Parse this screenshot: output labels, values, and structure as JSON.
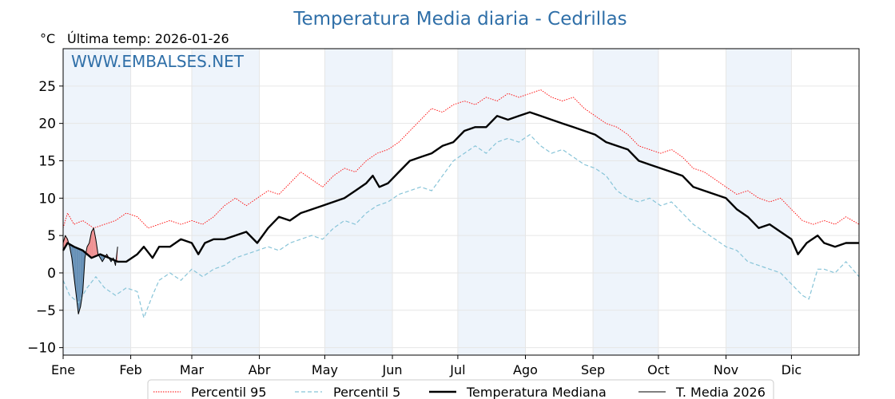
{
  "chart_data": {
    "type": "line",
    "title": "Temperatura Media diaria - Cedrillas",
    "unit_label": "°C",
    "last_temp_label": "Última temp: 2026-01-26",
    "watermark": "WWW.EMBALSES.NET",
    "ylim": [
      -11,
      30
    ],
    "yticks": [
      -10,
      -5,
      0,
      5,
      10,
      15,
      20,
      25
    ],
    "xlim": [
      1,
      366
    ],
    "x_unit": "day of year",
    "months": [
      {
        "label": "Ene",
        "start_day": 1
      },
      {
        "label": "Feb",
        "start_day": 32
      },
      {
        "label": "Mar",
        "start_day": 60
      },
      {
        "label": "Abr",
        "start_day": 91
      },
      {
        "label": "May",
        "start_day": 121
      },
      {
        "label": "Jun",
        "start_day": 152
      },
      {
        "label": "Jul",
        "start_day": 182
      },
      {
        "label": "Ago",
        "start_day": 213
      },
      {
        "label": "Sep",
        "start_day": 244
      },
      {
        "label": "Oct",
        "start_day": 274
      },
      {
        "label": "Nov",
        "start_day": 305
      },
      {
        "label": "Dic",
        "start_day": 335
      }
    ],
    "shaded_months": [
      "Ene",
      "Mar",
      "May",
      "Jul",
      "Sep",
      "Nov"
    ],
    "grid": true,
    "legend": {
      "placement": "bottom-center",
      "entries": [
        "Percentil 95",
        "Percentil 5",
        "Temperatura Mediana",
        "T. Media 2026"
      ]
    },
    "colors": {
      "p95": "#ff0000",
      "p5": "#87c4d8",
      "median": "#000000",
      "current": "#000000",
      "above_fill": "#f08080",
      "below_fill": "#4f7faa",
      "title": "#2f6fa8",
      "shade": "#eef4fb"
    },
    "series": [
      {
        "name": "Percentil 95",
        "style": "dotted-red",
        "points": [
          [
            1,
            6.0
          ],
          [
            3,
            8.0
          ],
          [
            6,
            6.5
          ],
          [
            10,
            7.0
          ],
          [
            15,
            6.0
          ],
          [
            20,
            6.5
          ],
          [
            25,
            7.0
          ],
          [
            30,
            8.0
          ],
          [
            35,
            7.5
          ],
          [
            40,
            6.0
          ],
          [
            45,
            6.5
          ],
          [
            50,
            7.0
          ],
          [
            55,
            6.5
          ],
          [
            60,
            7.0
          ],
          [
            65,
            6.5
          ],
          [
            70,
            7.5
          ],
          [
            75,
            9.0
          ],
          [
            80,
            10.0
          ],
          [
            85,
            9.0
          ],
          [
            90,
            10.0
          ],
          [
            95,
            11.0
          ],
          [
            100,
            10.5
          ],
          [
            105,
            12.0
          ],
          [
            110,
            13.5
          ],
          [
            115,
            12.5
          ],
          [
            120,
            11.5
          ],
          [
            125,
            13.0
          ],
          [
            130,
            14.0
          ],
          [
            135,
            13.5
          ],
          [
            140,
            15.0
          ],
          [
            145,
            16.0
          ],
          [
            150,
            16.5
          ],
          [
            155,
            17.5
          ],
          [
            160,
            19.0
          ],
          [
            165,
            20.5
          ],
          [
            170,
            22.0
          ],
          [
            175,
            21.5
          ],
          [
            180,
            22.5
          ],
          [
            185,
            23.0
          ],
          [
            190,
            22.5
          ],
          [
            195,
            23.5
          ],
          [
            200,
            23.0
          ],
          [
            205,
            24.0
          ],
          [
            210,
            23.5
          ],
          [
            215,
            24.0
          ],
          [
            220,
            24.5
          ],
          [
            225,
            23.5
          ],
          [
            230,
            23.0
          ],
          [
            235,
            23.5
          ],
          [
            240,
            22.0
          ],
          [
            245,
            21.0
          ],
          [
            250,
            20.0
          ],
          [
            255,
            19.5
          ],
          [
            260,
            18.5
          ],
          [
            265,
            17.0
          ],
          [
            270,
            16.5
          ],
          [
            275,
            16.0
          ],
          [
            280,
            16.5
          ],
          [
            285,
            15.5
          ],
          [
            290,
            14.0
          ],
          [
            295,
            13.5
          ],
          [
            300,
            12.5
          ],
          [
            305,
            11.5
          ],
          [
            310,
            10.5
          ],
          [
            315,
            11.0
          ],
          [
            320,
            10.0
          ],
          [
            325,
            9.5
          ],
          [
            330,
            10.0
          ],
          [
            335,
            8.5
          ],
          [
            340,
            7.0
          ],
          [
            345,
            6.5
          ],
          [
            350,
            7.0
          ],
          [
            355,
            6.5
          ],
          [
            360,
            7.5
          ],
          [
            366,
            6.5
          ]
        ]
      },
      {
        "name": "Percentil 5",
        "style": "dashed-lightblue",
        "points": [
          [
            1,
            -1.0
          ],
          [
            4,
            -3.0
          ],
          [
            8,
            -4.0
          ],
          [
            12,
            -2.0
          ],
          [
            16,
            -0.5
          ],
          [
            20,
            -2.0
          ],
          [
            25,
            -3.0
          ],
          [
            30,
            -2.0
          ],
          [
            35,
            -2.5
          ],
          [
            38,
            -6.0
          ],
          [
            42,
            -3.0
          ],
          [
            45,
            -1.0
          ],
          [
            50,
            0.0
          ],
          [
            55,
            -1.0
          ],
          [
            60,
            0.5
          ],
          [
            65,
            -0.5
          ],
          [
            70,
            0.5
          ],
          [
            75,
            1.0
          ],
          [
            80,
            2.0
          ],
          [
            85,
            2.5
          ],
          [
            90,
            3.0
          ],
          [
            95,
            3.5
          ],
          [
            100,
            3.0
          ],
          [
            105,
            4.0
          ],
          [
            110,
            4.5
          ],
          [
            115,
            5.0
          ],
          [
            120,
            4.5
          ],
          [
            125,
            6.0
          ],
          [
            130,
            7.0
          ],
          [
            135,
            6.5
          ],
          [
            140,
            8.0
          ],
          [
            145,
            9.0
          ],
          [
            150,
            9.5
          ],
          [
            155,
            10.5
          ],
          [
            160,
            11.0
          ],
          [
            165,
            11.5
          ],
          [
            170,
            11.0
          ],
          [
            175,
            13.0
          ],
          [
            180,
            15.0
          ],
          [
            185,
            16.0
          ],
          [
            190,
            17.0
          ],
          [
            195,
            16.0
          ],
          [
            200,
            17.5
          ],
          [
            205,
            18.0
          ],
          [
            210,
            17.5
          ],
          [
            215,
            18.5
          ],
          [
            220,
            17.0
          ],
          [
            225,
            16.0
          ],
          [
            230,
            16.5
          ],
          [
            235,
            15.5
          ],
          [
            240,
            14.5
          ],
          [
            245,
            14.0
          ],
          [
            250,
            13.0
          ],
          [
            255,
            11.0
          ],
          [
            260,
            10.0
          ],
          [
            265,
            9.5
          ],
          [
            270,
            10.0
          ],
          [
            275,
            9.0
          ],
          [
            280,
            9.5
          ],
          [
            285,
            8.0
          ],
          [
            290,
            6.5
          ],
          [
            295,
            5.5
          ],
          [
            300,
            4.5
          ],
          [
            305,
            3.5
          ],
          [
            310,
            3.0
          ],
          [
            315,
            1.5
          ],
          [
            320,
            1.0
          ],
          [
            325,
            0.5
          ],
          [
            330,
            0.0
          ],
          [
            335,
            -1.5
          ],
          [
            340,
            -3.0
          ],
          [
            343,
            -3.5
          ],
          [
            347,
            0.5
          ],
          [
            350,
            0.5
          ],
          [
            355,
            0.0
          ],
          [
            360,
            1.5
          ],
          [
            366,
            -0.5
          ]
        ]
      },
      {
        "name": "Temperatura Mediana",
        "style": "thick-black",
        "points": [
          [
            1,
            3.0
          ],
          [
            3,
            4.0
          ],
          [
            6,
            3.5
          ],
          [
            10,
            3.0
          ],
          [
            14,
            2.0
          ],
          [
            18,
            2.5
          ],
          [
            22,
            2.0
          ],
          [
            26,
            1.5
          ],
          [
            30,
            1.5
          ],
          [
            35,
            2.5
          ],
          [
            38,
            3.5
          ],
          [
            42,
            2.0
          ],
          [
            45,
            3.5
          ],
          [
            50,
            3.5
          ],
          [
            55,
            4.5
          ],
          [
            60,
            4.0
          ],
          [
            63,
            2.5
          ],
          [
            66,
            4.0
          ],
          [
            70,
            4.5
          ],
          [
            75,
            4.5
          ],
          [
            80,
            5.0
          ],
          [
            85,
            5.5
          ],
          [
            90,
            4.0
          ],
          [
            95,
            6.0
          ],
          [
            100,
            7.5
          ],
          [
            105,
            7.0
          ],
          [
            110,
            8.0
          ],
          [
            115,
            8.5
          ],
          [
            120,
            9.0
          ],
          [
            125,
            9.5
          ],
          [
            130,
            10.0
          ],
          [
            135,
            11.0
          ],
          [
            140,
            12.0
          ],
          [
            143,
            13.0
          ],
          [
            146,
            11.5
          ],
          [
            150,
            12.0
          ],
          [
            155,
            13.5
          ],
          [
            160,
            15.0
          ],
          [
            165,
            15.5
          ],
          [
            170,
            16.0
          ],
          [
            175,
            17.0
          ],
          [
            180,
            17.5
          ],
          [
            185,
            19.0
          ],
          [
            190,
            19.5
          ],
          [
            195,
            19.5
          ],
          [
            200,
            21.0
          ],
          [
            205,
            20.5
          ],
          [
            210,
            21.0
          ],
          [
            215,
            21.5
          ],
          [
            220,
            21.0
          ],
          [
            225,
            20.5
          ],
          [
            230,
            20.0
          ],
          [
            235,
            19.5
          ],
          [
            240,
            19.0
          ],
          [
            245,
            18.5
          ],
          [
            250,
            17.5
          ],
          [
            255,
            17.0
          ],
          [
            260,
            16.5
          ],
          [
            265,
            15.0
          ],
          [
            270,
            14.5
          ],
          [
            275,
            14.0
          ],
          [
            280,
            13.5
          ],
          [
            285,
            13.0
          ],
          [
            290,
            11.5
          ],
          [
            295,
            11.0
          ],
          [
            300,
            10.5
          ],
          [
            305,
            10.0
          ],
          [
            310,
            8.5
          ],
          [
            315,
            7.5
          ],
          [
            320,
            6.0
          ],
          [
            325,
            6.5
          ],
          [
            330,
            5.5
          ],
          [
            335,
            4.5
          ],
          [
            338,
            2.5
          ],
          [
            342,
            4.0
          ],
          [
            347,
            5.0
          ],
          [
            350,
            4.0
          ],
          [
            355,
            3.5
          ],
          [
            360,
            4.0
          ],
          [
            366,
            4.0
          ]
        ]
      },
      {
        "name": "T. Media 2026",
        "style": "thin-black",
        "points": [
          [
            1,
            4.0
          ],
          [
            2,
            5.0
          ],
          [
            3,
            4.5
          ],
          [
            4,
            3.5
          ],
          [
            5,
            2.0
          ],
          [
            6,
            -0.5
          ],
          [
            7,
            -3.0
          ],
          [
            8,
            -5.5
          ],
          [
            9,
            -4.5
          ],
          [
            10,
            -2.5
          ],
          [
            11,
            2.0
          ],
          [
            12,
            3.5
          ],
          [
            13,
            4.0
          ],
          [
            14,
            5.5
          ],
          [
            15,
            6.0
          ],
          [
            16,
            4.5
          ],
          [
            17,
            2.5
          ],
          [
            18,
            2.0
          ],
          [
            19,
            1.5
          ],
          [
            20,
            2.0
          ],
          [
            21,
            2.5
          ],
          [
            22,
            2.0
          ],
          [
            23,
            1.5
          ],
          [
            24,
            2.0
          ],
          [
            25,
            1.0
          ],
          [
            26,
            3.5
          ]
        ]
      }
    ]
  }
}
